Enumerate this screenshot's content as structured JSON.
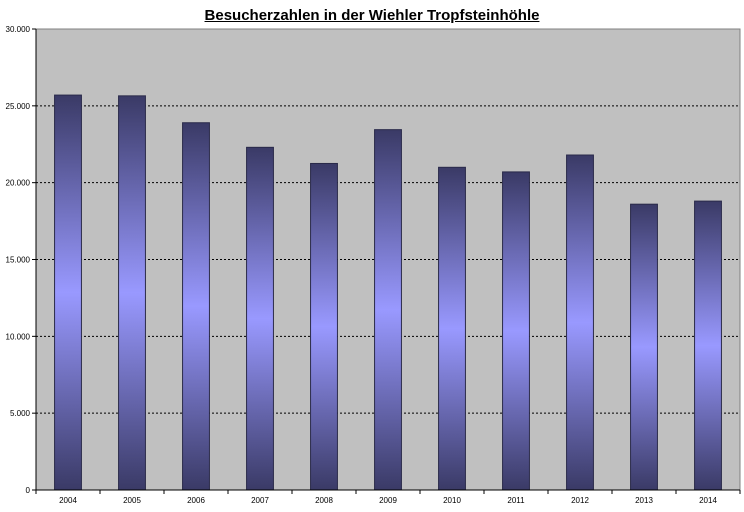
{
  "chart_data": {
    "type": "bar",
    "title": "Besucherzahlen in der Wiehler Tropfsteinhöhle",
    "xlabel": "",
    "ylabel": "",
    "categories": [
      "2004",
      "2005",
      "2006",
      "2007",
      "2008",
      "2009",
      "2010",
      "2011",
      "2012",
      "2013",
      "2014"
    ],
    "values": [
      25700,
      25650,
      23900,
      22300,
      21250,
      23450,
      21000,
      20700,
      21800,
      18600,
      18800
    ],
    "ylim": [
      0,
      30000
    ],
    "yticks": [
      0,
      5000,
      10000,
      15000,
      20000,
      25000,
      30000
    ],
    "ytick_labels": [
      "0",
      "5.000",
      "10.000",
      "15.000",
      "20.000",
      "25.000",
      "30.000"
    ],
    "grid": true,
    "legend": "none",
    "colors": {
      "plot_background": "#c0c0c0",
      "bar_edge": "#3a3a66",
      "bar_center": "#9999ff"
    }
  }
}
